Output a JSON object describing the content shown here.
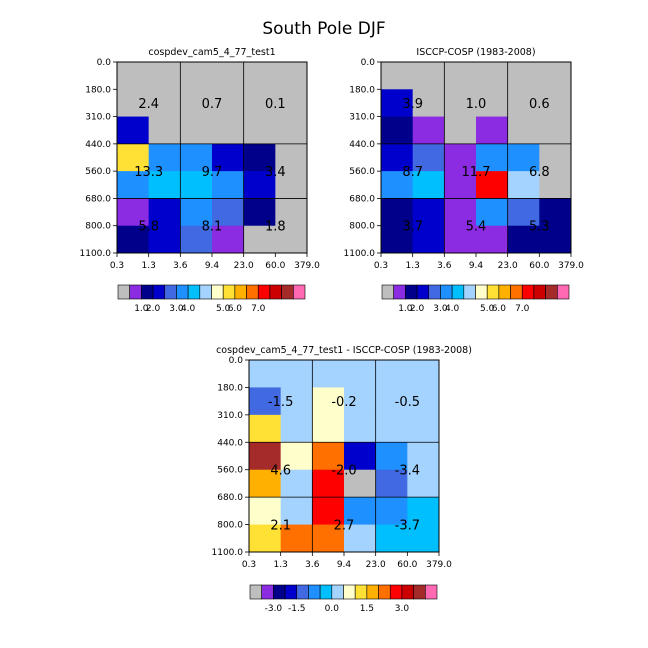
{
  "title": "South Pole DJF",
  "colors": {
    "gray": "#bebebe",
    "palette": [
      "#bebebe",
      "#8b2be2",
      "#00008b",
      "#0000cd",
      "#4169e1",
      "#1e90ff",
      "#00bfff",
      "#a4d3ff",
      "#ffffcc",
      "#ffe135",
      "#ffb000",
      "#ff7000",
      "#ff0000",
      "#cc0000",
      "#a52a2a",
      "#ff69b4"
    ]
  },
  "chart_data": [
    {
      "type": "heatmap",
      "title": "cospdev_cam5_4_77_test1",
      "x_ticks": [
        "0.3",
        "1.3",
        "3.6",
        "9.4",
        "23.0",
        "60.0",
        "379.0"
      ],
      "y_ticks": [
        "0.0",
        "180.0",
        "310.0",
        "440.0",
        "560.0",
        "680.0",
        "800.0",
        "1100.0"
      ],
      "ylim": [
        0,
        1100
      ],
      "cells_color_index": [
        [
          0,
          0,
          0,
          0,
          0,
          0
        ],
        [
          0,
          0,
          0,
          0,
          0,
          0
        ],
        [
          3,
          0,
          0,
          0,
          0,
          0
        ],
        [
          9,
          5,
          5,
          3,
          2,
          0
        ],
        [
          5,
          6,
          6,
          5,
          3,
          0
        ],
        [
          1,
          3,
          5,
          4,
          2,
          0
        ],
        [
          2,
          3,
          4,
          1,
          0,
          0
        ]
      ],
      "groups": [
        "2.4",
        "0.7",
        "0.1",
        "13.3",
        "9.7",
        "3.4",
        "5.8",
        "8.1",
        "1.8"
      ],
      "colorbar": {
        "labels": [
          "1.0",
          "2.0",
          "3.0",
          "4.0",
          "5.0",
          "6.0",
          "7.0"
        ]
      }
    },
    {
      "type": "heatmap",
      "title": "ISCCP-COSP (1983-2008)",
      "x_ticks": [
        "0.3",
        "1.3",
        "3.6",
        "9.4",
        "23.0",
        "60.0",
        "379.0"
      ],
      "y_ticks": [
        "0.0",
        "180.0",
        "310.0",
        "440.0",
        "560.0",
        "680.0",
        "800.0",
        "1100.0"
      ],
      "ylim": [
        0,
        1100
      ],
      "cells_color_index": [
        [
          0,
          0,
          0,
          0,
          0,
          0
        ],
        [
          3,
          0,
          0,
          0,
          0,
          0
        ],
        [
          2,
          1,
          0,
          1,
          0,
          0
        ],
        [
          3,
          4,
          1,
          5,
          5,
          0
        ],
        [
          5,
          6,
          1,
          12,
          7,
          0
        ],
        [
          2,
          3,
          1,
          5,
          4,
          2
        ],
        [
          2,
          3,
          1,
          1,
          2,
          2
        ]
      ],
      "groups": [
        "3.9",
        "1.0",
        "0.6",
        "8.7",
        "11.7",
        "6.8",
        "3.7",
        "5.4",
        "5.3"
      ],
      "colorbar": {
        "labels": [
          "1.0",
          "2.0",
          "3.0",
          "4.0",
          "5.0",
          "6.0",
          "7.0"
        ]
      }
    },
    {
      "type": "heatmap",
      "title": "cospdev_cam5_4_77_test1 - ISCCP-COSP (1983-2008)",
      "x_ticks": [
        "0.3",
        "1.3",
        "3.6",
        "9.4",
        "23.0",
        "60.0",
        "379.0"
      ],
      "y_ticks": [
        "0.0",
        "180.0",
        "310.0",
        "440.0",
        "560.0",
        "680.0",
        "800.0",
        "1100.0"
      ],
      "ylim": [
        0,
        1100
      ],
      "cells_color_index": [
        [
          7,
          7,
          7,
          7,
          7,
          7
        ],
        [
          4,
          7,
          8,
          7,
          7,
          7
        ],
        [
          9,
          7,
          8,
          7,
          7,
          7
        ],
        [
          14,
          8,
          11,
          3,
          5,
          7
        ],
        [
          10,
          7,
          12,
          0,
          4,
          7
        ],
        [
          8,
          7,
          12,
          5,
          5,
          6
        ],
        [
          9,
          11,
          11,
          7,
          6,
          6
        ]
      ],
      "groups": [
        "-1.5",
        "-0.2",
        "-0.5",
        "4.6",
        "-2.0",
        "-3.4",
        "2.1",
        "2.7",
        "-3.7"
      ],
      "colorbar": {
        "labels": [
          "-3.0",
          "-1.5",
          "0.0",
          "1.5",
          "3.0"
        ]
      }
    }
  ]
}
